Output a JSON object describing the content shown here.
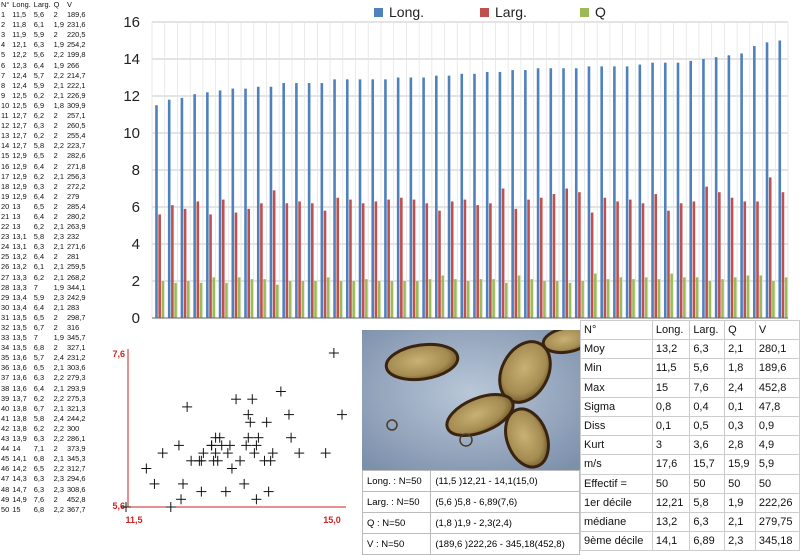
{
  "measurements": {
    "headers": [
      "N°",
      "Long.",
      "Larg.",
      "Q",
      "V"
    ],
    "rows": [
      [
        "1",
        "11,5",
        "5,6",
        "2",
        "189,6"
      ],
      [
        "2",
        "11,8",
        "6,1",
        "1,9",
        "231,6"
      ],
      [
        "3",
        "11,9",
        "5,9",
        "2",
        "220,5"
      ],
      [
        "4",
        "12,1",
        "6,3",
        "1,9",
        "254,2"
      ],
      [
        "5",
        "12,2",
        "5,6",
        "2,2",
        "199,8"
      ],
      [
        "6",
        "12,3",
        "6,4",
        "1,9",
        "266"
      ],
      [
        "7",
        "12,4",
        "5,7",
        "2,2",
        "214,7"
      ],
      [
        "8",
        "12,4",
        "5,9",
        "2,1",
        "222,1"
      ],
      [
        "9",
        "12,5",
        "6,2",
        "2,1",
        "226,9"
      ],
      [
        "10",
        "12,5",
        "6,9",
        "1,8",
        "309,9"
      ],
      [
        "11",
        "12,7",
        "6,2",
        "2",
        "257,1"
      ],
      [
        "12",
        "12,7",
        "6,3",
        "2",
        "260,5"
      ],
      [
        "13",
        "12,7",
        "6,2",
        "2",
        "255,4"
      ],
      [
        "14",
        "12,7",
        "5,8",
        "2,2",
        "223,7"
      ],
      [
        "15",
        "12,9",
        "6,5",
        "2",
        "282,6"
      ],
      [
        "16",
        "12,9",
        "6,4",
        "2",
        "271,8"
      ],
      [
        "17",
        "12,9",
        "6,2",
        "2,1",
        "256,3"
      ],
      [
        "18",
        "12,9",
        "6,3",
        "2",
        "272,2"
      ],
      [
        "19",
        "12,9",
        "6,4",
        "2",
        "279"
      ],
      [
        "20",
        "13",
        "6,5",
        "2",
        "285,4"
      ],
      [
        "21",
        "13",
        "6,4",
        "2",
        "280,2"
      ],
      [
        "22",
        "13",
        "6,2",
        "2,1",
        "263,9"
      ],
      [
        "23",
        "13,1",
        "5,8",
        "2,3",
        "232"
      ],
      [
        "24",
        "13,1",
        "6,3",
        "2,1",
        "271,6"
      ],
      [
        "25",
        "13,2",
        "6,4",
        "2",
        "281"
      ],
      [
        "26",
        "13,2",
        "6,1",
        "2,1",
        "259,5"
      ],
      [
        "27",
        "13,3",
        "6,2",
        "2,1",
        "268,2"
      ],
      [
        "28",
        "13,3",
        "7",
        "1,9",
        "344,1"
      ],
      [
        "29",
        "13,4",
        "5,9",
        "2,3",
        "242,9"
      ],
      [
        "30",
        "13,4",
        "6,4",
        "2,1",
        "283"
      ],
      [
        "31",
        "13,5",
        "6,5",
        "2",
        "298,7"
      ],
      [
        "32",
        "13,5",
        "6,7",
        "2",
        "316"
      ],
      [
        "33",
        "13,5",
        "7",
        "1,9",
        "345,7"
      ],
      [
        "34",
        "13,5",
        "6,8",
        "2",
        "327,1"
      ],
      [
        "35",
        "13,6",
        "5,7",
        "2,4",
        "231,2"
      ],
      [
        "36",
        "13,6",
        "6,5",
        "2,1",
        "303,6"
      ],
      [
        "37",
        "13,6",
        "6,3",
        "2,2",
        "279,3"
      ],
      [
        "38",
        "13,6",
        "6,4",
        "2,1",
        "293,9"
      ],
      [
        "39",
        "13,7",
        "6,2",
        "2,2",
        "275,3"
      ],
      [
        "40",
        "13,8",
        "6,7",
        "2,1",
        "321,3"
      ],
      [
        "41",
        "13,8",
        "5,8",
        "2,4",
        "244,2"
      ],
      [
        "42",
        "13,8",
        "6,2",
        "2,2",
        "300"
      ],
      [
        "43",
        "13,9",
        "6,3",
        "2,2",
        "286,1"
      ],
      [
        "44",
        "14",
        "7,1",
        "2",
        "373,9"
      ],
      [
        "45",
        "14,1",
        "6,8",
        "2,1",
        "345,3"
      ],
      [
        "46",
        "14,2",
        "6,5",
        "2,2",
        "312,7"
      ],
      [
        "47",
        "14,3",
        "6,3",
        "2,3",
        "294,6"
      ],
      [
        "48",
        "14,7",
        "6,3",
        "2,3",
        "308,6"
      ],
      [
        "49",
        "14,9",
        "7,6",
        "2",
        "452,8"
      ],
      [
        "50",
        "15",
        "6,8",
        "2,2",
        "367,7"
      ]
    ]
  },
  "chart_data": [
    {
      "type": "bar",
      "title": "",
      "ylim": [
        0,
        16
      ],
      "yticks": [
        0,
        2,
        4,
        6,
        8,
        10,
        12,
        14,
        16
      ],
      "legend_position": "top",
      "grid": true,
      "series": [
        {
          "name": "Long.",
          "color": "#4f81bd",
          "values": [
            11.5,
            11.8,
            11.9,
            12.1,
            12.2,
            12.3,
            12.4,
            12.4,
            12.5,
            12.5,
            12.7,
            12.7,
            12.7,
            12.7,
            12.9,
            12.9,
            12.9,
            12.9,
            12.9,
            13,
            13,
            13,
            13.1,
            13.1,
            13.2,
            13.2,
            13.3,
            13.3,
            13.4,
            13.4,
            13.5,
            13.5,
            13.5,
            13.5,
            13.6,
            13.6,
            13.6,
            13.6,
            13.7,
            13.8,
            13.8,
            13.8,
            13.9,
            14,
            14.1,
            14.2,
            14.3,
            14.7,
            14.9,
            15
          ]
        },
        {
          "name": "Larg.",
          "color": "#c0504d",
          "values": [
            5.6,
            6.1,
            5.9,
            6.3,
            5.6,
            6.4,
            5.7,
            5.9,
            6.2,
            6.9,
            6.2,
            6.3,
            6.2,
            5.8,
            6.5,
            6.4,
            6.2,
            6.3,
            6.4,
            6.5,
            6.4,
            6.2,
            5.8,
            6.3,
            6.4,
            6.1,
            6.2,
            7,
            5.9,
            6.4,
            6.5,
            6.7,
            7,
            6.8,
            5.7,
            6.5,
            6.3,
            6.4,
            6.2,
            6.7,
            5.8,
            6.2,
            6.3,
            7.1,
            6.8,
            6.5,
            6.3,
            6.3,
            7.6,
            6.8
          ]
        },
        {
          "name": "Q",
          "color": "#9bbb59",
          "values": [
            2,
            1.9,
            2,
            1.9,
            2.2,
            1.9,
            2.2,
            2.1,
            2.1,
            1.8,
            2,
            2,
            2,
            2.2,
            2,
            2,
            2.1,
            2,
            2,
            2,
            2,
            2.1,
            2.3,
            2.1,
            2,
            2.1,
            2.1,
            1.9,
            2.3,
            2.1,
            2,
            2,
            1.9,
            2,
            2.4,
            2.1,
            2.2,
            2.1,
            2.2,
            2.1,
            2.4,
            2.2,
            2.2,
            2,
            2.1,
            2.2,
            2.3,
            2.3,
            2,
            2.2
          ]
        }
      ]
    },
    {
      "type": "scatter",
      "marker": "+",
      "x_label_min": "11,5",
      "x_label_max": "15,0",
      "y_label_min": "5,6",
      "y_label_max": "7,6",
      "xlim": [
        11.5,
        15.0
      ],
      "ylim": [
        5.6,
        7.6
      ],
      "x": [
        11.5,
        11.8,
        11.9,
        12.1,
        12.2,
        12.3,
        12.4,
        12.4,
        12.5,
        12.5,
        12.7,
        12.7,
        12.7,
        12.7,
        12.9,
        12.9,
        12.9,
        12.9,
        12.9,
        13,
        13,
        13,
        13.1,
        13.1,
        13.2,
        13.2,
        13.3,
        13.3,
        13.4,
        13.4,
        13.5,
        13.5,
        13.5,
        13.5,
        13.6,
        13.6,
        13.6,
        13.6,
        13.7,
        13.8,
        13.8,
        13.8,
        13.9,
        14,
        14.1,
        14.2,
        14.3,
        14.7,
        14.9,
        15
      ],
      "y": [
        5.6,
        6.1,
        5.9,
        6.3,
        5.6,
        6.4,
        5.7,
        5.9,
        6.2,
        6.9,
        6.2,
        6.3,
        6.2,
        5.8,
        6.5,
        6.4,
        6.2,
        6.3,
        6.4,
        6.5,
        6.4,
        6.2,
        5.8,
        6.3,
        6.4,
        6.1,
        6.2,
        7,
        5.9,
        6.4,
        6.5,
        6.7,
        7,
        6.8,
        5.7,
        6.5,
        6.3,
        6.4,
        6.2,
        6.7,
        5.8,
        6.2,
        6.3,
        7.1,
        6.8,
        6.5,
        6.3,
        6.3,
        7.6,
        6.8
      ]
    }
  ],
  "ranges": [
    {
      "label": "Long. : N=50",
      "value": "(11,5 )12,21 - 14,1(15,0)"
    },
    {
      "label": "Larg. : N=50",
      "value": "(5,6 )5,8 - 6,89(7,6)"
    },
    {
      "label": "Q : N=50",
      "value": "(1,8 )1,9 - 2,3(2,4)"
    },
    {
      "label": "V : N=50",
      "value": "(189,6 )222,26 - 345,18(452,8)"
    }
  ],
  "stats": {
    "headers": [
      "N°",
      "Long.",
      "Larg.",
      "Q",
      "V"
    ],
    "rows": [
      [
        "Moy",
        "13,2",
        "6,3",
        "2,1",
        "280,1"
      ],
      [
        "Min",
        "11,5",
        "5,6",
        "1,8",
        "189,6"
      ],
      [
        "Max",
        "15",
        "7,6",
        "2,4",
        "452,8"
      ],
      [
        "Sigma",
        "0,8",
        "0,4",
        "0,1",
        "47,8"
      ],
      [
        "Diss",
        "0,1",
        "0,5",
        "0,3",
        "0,9"
      ],
      [
        "Kurt",
        "3",
        "3,6",
        "2,8",
        "4,9"
      ],
      [
        "m/s",
        "17,6",
        "15,7",
        "15,9",
        "5,9"
      ],
      [
        "Effectif =",
        "50",
        "50",
        "50",
        "50"
      ],
      [
        "1er décile",
        "12,21",
        "5,8",
        "1,9",
        "222,26"
      ],
      [
        "médiane",
        "13,2",
        "6,3",
        "2,1",
        "279,75"
      ],
      [
        "9ème décile",
        "14,1",
        "6,89",
        "2,3",
        "345,18"
      ]
    ]
  }
}
